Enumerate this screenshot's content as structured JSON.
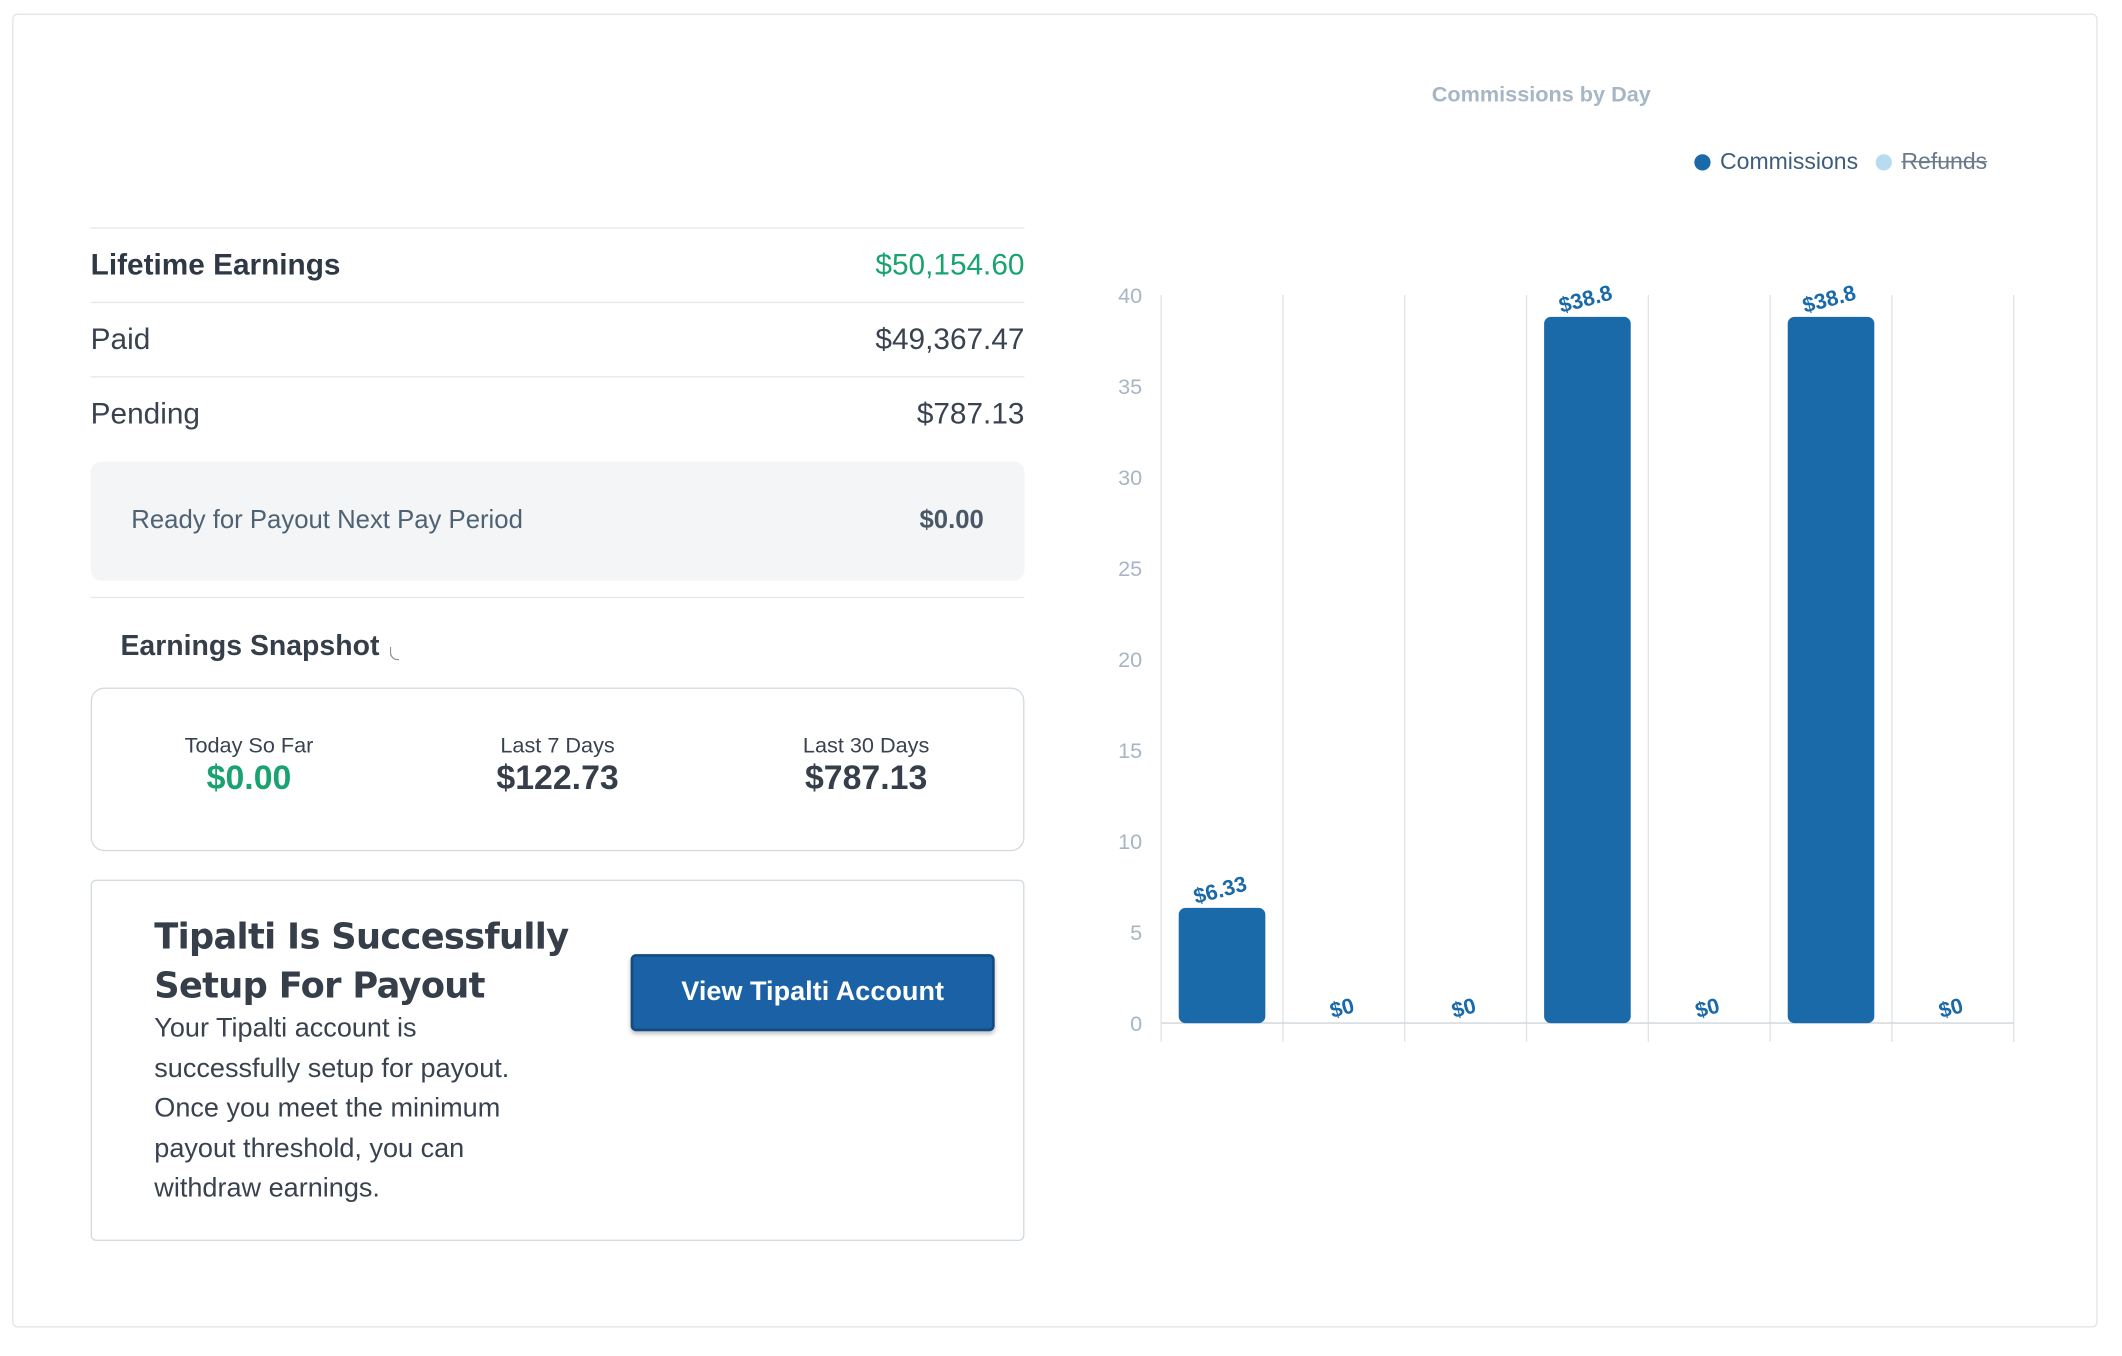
{
  "summary": {
    "lifetime_label": "Lifetime Earnings",
    "lifetime_value": "$50,154.60",
    "paid_label": "Paid",
    "paid_value": "$49,367.47",
    "pending_label": "Pending",
    "pending_value": "$787.13",
    "ready_label": "Ready for Payout Next Pay Period",
    "ready_value": "$0.00"
  },
  "snapshot": {
    "title": "Earnings Snapshot",
    "today_label": "Today So Far",
    "today_value": "$0.00",
    "week_label": "Last 7 Days",
    "week_value": "$122.73",
    "month_label": "Last 30 Days",
    "month_value": "$787.13"
  },
  "tipalti": {
    "title": "Tipalti Is Successfully Setup For Payout",
    "text": "Your Tipalti account is successfully setup for payout. Once you meet the minimum payout threshold, you can withdraw earnings.",
    "button_label": "View Tipalti Account"
  },
  "colors": {
    "commissions": "#1a69a8",
    "refunds": "#b7dbef",
    "green": "#1aa370"
  },
  "chart_data": {
    "type": "bar",
    "title": "Commissions by Day",
    "legend": [
      "Commissions",
      "Refunds"
    ],
    "legend_placement": "top-right",
    "refunds_hidden": true,
    "series": [
      {
        "name": "Commissions",
        "values": [
          6.33,
          0,
          0,
          38.8,
          0,
          38.8,
          0
        ],
        "labels": [
          "$6.33",
          "$0",
          "$0",
          "$38.8",
          "$0",
          "$38.8",
          "$0"
        ]
      }
    ],
    "ylim": [
      0,
      40
    ],
    "yticks": [
      0,
      5,
      10,
      15,
      20,
      25,
      30,
      35,
      40
    ],
    "grid": true
  }
}
